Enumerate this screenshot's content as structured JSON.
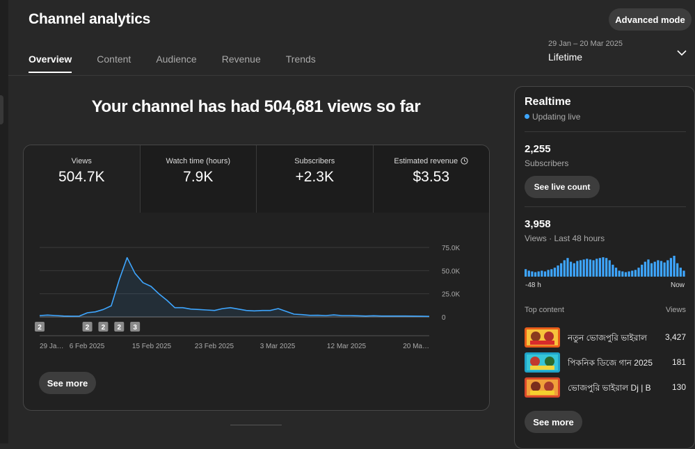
{
  "header": {
    "title": "Channel analytics",
    "advanced_mode": "Advanced mode",
    "tabs": [
      "Overview",
      "Content",
      "Audience",
      "Revenue",
      "Trends"
    ],
    "active_tab": "Overview",
    "date_range": "29 Jan – 20 Mar 2025",
    "period": "Lifetime"
  },
  "main": {
    "headline": "Your channel has had 504,681 views so far",
    "metrics": [
      {
        "label": "Views",
        "value": "504.7K"
      },
      {
        "label": "Watch time (hours)",
        "value": "7.9K"
      },
      {
        "label": "Subscribers",
        "value": "+2.3K"
      },
      {
        "label": "Estimated revenue",
        "value": "$3.53"
      }
    ],
    "see_more": "See more"
  },
  "chart_data": {
    "type": "area",
    "series": [
      {
        "values": [
          1500,
          2000,
          1500,
          1000,
          800,
          900,
          4500,
          5500,
          8000,
          12000,
          40000,
          64000,
          47000,
          37000,
          33000,
          25000,
          18000,
          10000,
          10000,
          8500,
          8000,
          7500,
          7000,
          9000,
          10000,
          8500,
          7000,
          6500,
          7000,
          7000,
          9000,
          6000,
          3000,
          2500,
          1700,
          1800,
          1500,
          2200,
          1500,
          1500,
          1300,
          1000,
          1300,
          1000,
          1000,
          1000,
          1000,
          900,
          800,
          600
        ]
      }
    ],
    "x": [
      "29 Jan",
      "30 Jan",
      "31 Jan",
      "1 Feb",
      "2 Feb",
      "3 Feb",
      "4 Feb",
      "5 Feb",
      "6 Feb",
      "7 Feb",
      "8 Feb",
      "9 Feb",
      "10 Feb",
      "11 Feb",
      "12 Feb",
      "13 Feb",
      "14 Feb",
      "15 Feb",
      "16 Feb",
      "17 Feb",
      "18 Feb",
      "19 Feb",
      "20 Feb",
      "21 Feb",
      "22 Feb",
      "23 Feb",
      "24 Feb",
      "25 Feb",
      "26 Feb",
      "27 Feb",
      "28 Feb",
      "1 Mar",
      "2 Mar",
      "3 Mar",
      "4 Mar",
      "5 Mar",
      "6 Mar",
      "7 Mar",
      "8 Mar",
      "9 Mar",
      "10 Mar",
      "11 Mar",
      "12 Mar",
      "13 Mar",
      "14 Mar",
      "15 Mar",
      "16 Mar",
      "17 Mar",
      "18 Mar",
      "20 Mar"
    ],
    "x_tick_labels": [
      "29 Ja…",
      "6 Feb 2025",
      "15 Feb 2025",
      "23 Feb 2025",
      "3 Mar 2025",
      "12 Mar 2025",
      "20 Ma…"
    ],
    "y_tick_labels": [
      "75.0K",
      "50.0K",
      "25.0K",
      "0"
    ],
    "ylim": [
      0,
      75000
    ],
    "grid": true,
    "markers": [
      {
        "x": "29 Jan",
        "label": "2"
      },
      {
        "x": "4 Feb",
        "label": "2"
      },
      {
        "x": "6 Feb",
        "label": "2"
      },
      {
        "x": "8 Feb",
        "label": "2"
      },
      {
        "x": "10 Feb",
        "label": "3"
      }
    ],
    "line_color": "#3ea6ff"
  },
  "realtime": {
    "title": "Realtime",
    "status": "Updating live",
    "subscribers_count": "2,255",
    "subscribers_label": "Subscribers",
    "live_count_button": "See live count",
    "views_count": "3,958",
    "views_label": "Views · Last 48 hours",
    "bars": [
      10,
      8,
      7,
      6,
      7,
      8,
      7,
      9,
      10,
      12,
      15,
      18,
      22,
      25,
      20,
      18,
      21,
      22,
      23,
      24,
      23,
      22,
      24,
      25,
      26,
      25,
      22,
      16,
      12,
      8,
      7,
      6,
      7,
      8,
      9,
      12,
      16,
      20,
      23,
      18,
      20,
      22,
      21,
      19,
      22,
      25,
      28,
      18,
      12,
      8
    ],
    "axis_start": "-48 h",
    "axis_end": "Now",
    "top_content_label": "Top content",
    "views_col_label": "Views",
    "top_content": [
      {
        "title": "নতুন ভোজপুরি ভাইরাল",
        "views": "3,427"
      },
      {
        "title": "পিকনিক ডিজে গান 2025",
        "views": "181"
      },
      {
        "title": "ভোজপুরি ভাইরাল Dj | B",
        "views": "130"
      }
    ],
    "see_more": "See more"
  }
}
